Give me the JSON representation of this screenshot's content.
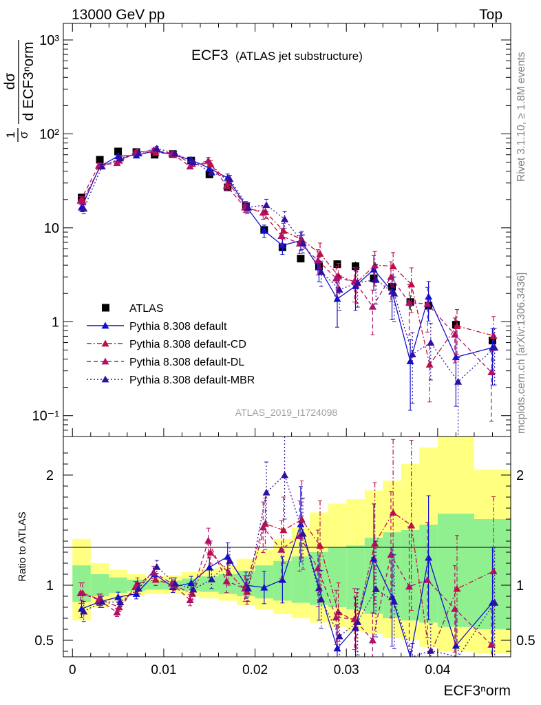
{
  "header": {
    "left": "13000 GeV pp",
    "right": "Top"
  },
  "side_labels": {
    "rivet": "Rivet 3.1.10, ≥ 1.8M events",
    "mcplots": "mcplots.cern.ch [arXiv:1306.3436]"
  },
  "plot_title": {
    "main": "ECF3",
    "sub": "(ATLAS jet substructure)"
  },
  "analysis_tag": "ATLAS_2019_I1724098",
  "y_label_top": {
    "frac1_num": "1",
    "frac1_den": "σ",
    "d_num": "dσ",
    "d_den": "d ECF3ⁿorm"
  },
  "y_label_ratio": "Ratio to ATLAS",
  "x_label": "ECF3ⁿorm",
  "colors": {
    "data": "#000000",
    "default": "#1010d0",
    "cd": "#c01040",
    "dl": "#b0106a",
    "mbr": "#3010a0",
    "band_inner": "#90f090",
    "band_outer": "#ffff80"
  },
  "chart_data": {
    "type": "line",
    "xlabel": "ECF3ⁿorm",
    "xlim": [
      -0.001,
      0.048
    ],
    "x_ticks": [
      0,
      0.01,
      0.02,
      0.03,
      0.04
    ],
    "x_tick_labels": [
      "0",
      "0.01",
      "0.02",
      "0.03",
      "0.04"
    ],
    "main_panel": {
      "yscale": "log",
      "ylim": [
        0.06,
        1500
      ],
      "y_ticks": [
        0.1,
        1,
        10,
        100,
        1000
      ],
      "y_tick_labels": [
        "10⁻¹",
        "1",
        "10",
        "10²",
        "10³"
      ]
    },
    "ratio_panel": {
      "ylabel": "Ratio to ATLAS",
      "ylim": [
        0.35,
        2.35
      ],
      "y_ticks": [
        0.5,
        1,
        2
      ],
      "y_tick_labels": [
        "0.5",
        "1",
        "2"
      ]
    },
    "x": [
      0.001,
      0.003,
      0.005,
      0.007,
      0.009,
      0.011,
      0.013,
      0.015,
      0.017,
      0.019,
      0.021,
      0.023,
      0.025,
      0.027,
      0.029,
      0.031,
      0.033,
      0.035,
      0.037,
      0.039,
      0.042,
      0.046
    ],
    "bin_edges": [
      0,
      0.002,
      0.004,
      0.006,
      0.008,
      0.01,
      0.012,
      0.014,
      0.016,
      0.018,
      0.02,
      0.022,
      0.024,
      0.026,
      0.028,
      0.03,
      0.032,
      0.034,
      0.036,
      0.038,
      0.04,
      0.044,
      0.048
    ],
    "band_inner": [
      [
        0.85,
        1.18
      ],
      [
        0.9,
        1.1
      ],
      [
        0.93,
        1.07
      ],
      [
        0.95,
        1.05
      ],
      [
        0.96,
        1.04
      ],
      [
        0.96,
        1.04
      ],
      [
        0.95,
        1.06
      ],
      [
        0.94,
        1.08
      ],
      [
        0.92,
        1.1
      ],
      [
        0.9,
        1.13
      ],
      [
        0.88,
        1.18
      ],
      [
        0.86,
        1.22
      ],
      [
        0.84,
        1.26
      ],
      [
        0.82,
        1.3
      ],
      [
        0.8,
        1.34
      ],
      [
        0.78,
        1.36
      ],
      [
        0.74,
        1.43
      ],
      [
        0.7,
        1.48
      ],
      [
        0.68,
        1.5
      ],
      [
        0.66,
        1.55
      ],
      [
        0.62,
        1.65
      ],
      [
        0.6,
        1.6
      ]
    ],
    "band_outer": [
      [
        0.68,
        1.42
      ],
      [
        0.8,
        1.2
      ],
      [
        0.86,
        1.14
      ],
      [
        0.9,
        1.1
      ],
      [
        0.92,
        1.08
      ],
      [
        0.92,
        1.09
      ],
      [
        0.9,
        1.12
      ],
      [
        0.88,
        1.15
      ],
      [
        0.86,
        1.18
      ],
      [
        0.82,
        1.24
      ],
      [
        0.78,
        1.32
      ],
      [
        0.74,
        1.42
      ],
      [
        0.7,
        1.52
      ],
      [
        0.66,
        1.66
      ],
      [
        0.62,
        1.74
      ],
      [
        0.58,
        1.78
      ],
      [
        0.56,
        1.86
      ],
      [
        0.52,
        1.95
      ],
      [
        0.5,
        2.1
      ],
      [
        0.44,
        2.25
      ],
      [
        0.4,
        2.5
      ],
      [
        0.38,
        2.05
      ]
    ],
    "series": [
      {
        "name": "ATLAS",
        "key": "data",
        "values": [
          21,
          53,
          65,
          64,
          60,
          61,
          52,
          37,
          27,
          17,
          9.5,
          6.2,
          4.7,
          3.9,
          4.1,
          3.9,
          2.9,
          2.35,
          1.62,
          1.48,
          0.93,
          0.63
        ],
        "errors": [
          0.08,
          0.03,
          0.03,
          0.03,
          0.03,
          0.03,
          0.03,
          0.04,
          0.04,
          0.05,
          0.06,
          0.07,
          0.08,
          0.09,
          0.1,
          0.12,
          0.14,
          0.16,
          0.18,
          0.2,
          0.25,
          0.3
        ]
      },
      {
        "name": "Pythia 8.308 default",
        "key": "default",
        "values": [
          16.5,
          45,
          58,
          59,
          66,
          60,
          53,
          43,
          34,
          17,
          9.3,
          6.5,
          7.3,
          3.8,
          1.75,
          2.4,
          3.6,
          2.1,
          0.38,
          1.85,
          0.42,
          0.53
        ],
        "errors": [
          0.1,
          0.06,
          0.05,
          0.05,
          0.05,
          0.05,
          0.06,
          0.08,
          0.1,
          0.12,
          0.15,
          0.2,
          0.22,
          0.3,
          0.5,
          0.45,
          0.4,
          0.5,
          0.7,
          0.45,
          0.7,
          0.6
        ]
      },
      {
        "name": "Pythia 8.308 default-CD",
        "key": "cd",
        "values": [
          19.5,
          46,
          52,
          65,
          63,
          61,
          48,
          48,
          30,
          16,
          14.8,
          9.3,
          7.5,
          5.3,
          3.1,
          2.6,
          4.0,
          3.9,
          2.5,
          0.35,
          0.9,
          0.71
        ],
        "errors": [
          0.1,
          0.06,
          0.05,
          0.05,
          0.05,
          0.05,
          0.06,
          0.08,
          0.1,
          0.12,
          0.15,
          0.2,
          0.22,
          0.3,
          0.35,
          0.4,
          0.4,
          0.4,
          0.5,
          0.6,
          0.5,
          0.6
        ]
      },
      {
        "name": "Pythia 8.308 default-DL",
        "key": "dl",
        "values": [
          19.5,
          46,
          49,
          63,
          67,
          62,
          45,
          52,
          28,
          16.5,
          14.5,
          8.2,
          6.8,
          4.5,
          2.9,
          2.7,
          1.45,
          3.0,
          1.6,
          1.55,
          0.73,
          0.29
        ],
        "errors": [
          0.1,
          0.06,
          0.05,
          0.05,
          0.05,
          0.05,
          0.06,
          0.08,
          0.1,
          0.12,
          0.15,
          0.2,
          0.22,
          0.3,
          0.35,
          0.4,
          0.5,
          0.45,
          0.55,
          0.5,
          0.5,
          0.7
        ]
      },
      {
        "name": "Pythia 8.308 default-MBR",
        "key": "mbr",
        "values": [
          16,
          45,
          55,
          62,
          70,
          62,
          50,
          39,
          33,
          16.5,
          17.5,
          12.4,
          6.9,
          3.4,
          2.2,
          2.6,
          2.8,
          2.0,
          0.45,
          0.6,
          0.23,
          0.53
        ],
        "errors": [
          0.12,
          0.06,
          0.05,
          0.05,
          0.05,
          0.05,
          0.06,
          0.08,
          0.1,
          0.12,
          0.15,
          0.2,
          0.22,
          0.3,
          0.4,
          0.45,
          0.45,
          0.5,
          0.7,
          0.6,
          0.8,
          0.6
        ]
      }
    ]
  }
}
